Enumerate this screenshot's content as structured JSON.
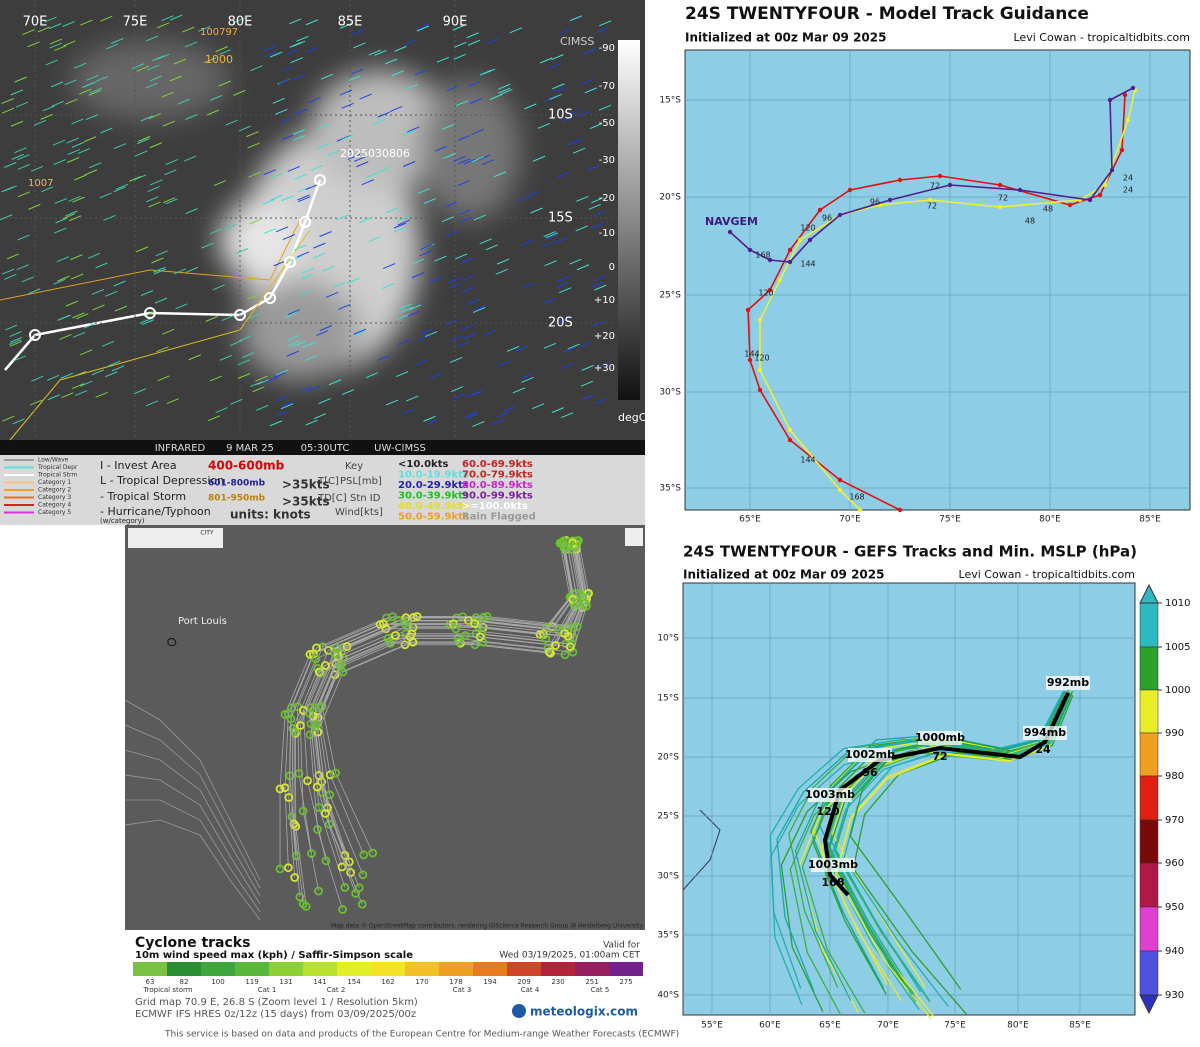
{
  "satellite": {
    "lon_labels": [
      "70E",
      "75E",
      "80E",
      "85E",
      "90E"
    ],
    "lat_labels": [
      "10S",
      "15S",
      "20S"
    ],
    "colorbar_labels": [
      "-90",
      "-70",
      "-50",
      "-30",
      "-20",
      "-10",
      "0",
      "+10",
      "+20",
      "+30"
    ],
    "colorbar_unit": "degC",
    "stamp": "2025030806",
    "pressures": [
      "1007",
      "1000",
      "100797"
    ],
    "footer": [
      "INFRARED",
      "9 MAR 25",
      "05:30UTC",
      "UW-CIMSS"
    ],
    "logo": "CIMSS"
  },
  "sat_legend": {
    "track_types": [
      "Low/Wave",
      "Tropical Depr",
      "Tropical Strm",
      "Category 1",
      "Category 2",
      "Category 3",
      "Category 4",
      "Category 5"
    ],
    "symbols": [
      "I - Invest Area",
      "L - Tropical Depression",
      "- Tropical Storm",
      "- Hurricane/Typhoon",
      "(w/category)"
    ],
    "layers": [
      "400-600mb",
      "601-800mb",
      ">35kts",
      "801-950mb",
      ">35kts",
      "units: knots"
    ],
    "key": [
      "Key",
      "T[C]",
      "PSL[mb]",
      "TD[C]",
      "Stn ID",
      "Wind[kts]"
    ],
    "speeds": [
      "<10.0kts",
      "10.0-19.9kts",
      "20.0-29.9kts",
      "30.0-39.9kts",
      "40.0-49.9kts",
      "50.0-59.9kts",
      "60.0-69.9kts",
      "70.0-79.9kts",
      "80.0-89.9kts",
      "90.0-99.9kts",
      ">=100.0kts",
      "Rain Flagged"
    ]
  },
  "model_track": {
    "title": "24S TWENTYFOUR - Model Track Guidance",
    "init": "Initialized at 00z Mar 09 2025",
    "credit": "Levi Cowan - tropicaltidbits.com",
    "lat_labels": [
      "15°S",
      "20°S",
      "25°S",
      "30°S",
      "35°S"
    ],
    "lon_labels": [
      "65°E",
      "70°E",
      "75°E",
      "80°E",
      "85°E"
    ],
    "model_label": "NAVGEM",
    "hour_labels": [
      "72",
      "72",
      "96",
      "96",
      "120",
      "168",
      "144",
      "120",
      "144",
      "120",
      "144",
      "168",
      "24",
      "24",
      "48",
      "48",
      "72"
    ]
  },
  "cyclone_tracks": {
    "place": "Port Louis",
    "attribution": "Map data © OpenStreetMap contributors, rendering GIScience Research Group @ Heidelberg University",
    "title": "Cyclone tracks",
    "subtitle": "10m wind speed max (kph) / Saffir-Simpson scale",
    "valid_label": "Valid for",
    "valid_time": "Wed 03/19/2025, 01:00am CET",
    "scale": [
      "63",
      "82",
      "100",
      "119",
      "131",
      "141",
      "154",
      "162",
      "170",
      "178",
      "194",
      "209",
      "230",
      "251",
      "275"
    ],
    "categories": [
      "Tropical storm",
      "Cat 1",
      "Cat 2",
      "Cat 3",
      "Cat 4",
      "Cat 5"
    ],
    "grid_info": "Grid map 70.9 E, 26.8 S (Zoom level 1 / Resolution 5km)",
    "model_info": "ECMWF IFS HRES 0z/12z (15 days) from 03/09/2025/00z",
    "brand": "meteologix.com",
    "footer": "This service is based on data and products of the European Centre for Medium-range Weather Forecasts (ECMWF)",
    "city_button": "CITY"
  },
  "gefs": {
    "title": "24S TWENTYFOUR - GEFS Tracks and Min. MSLP (hPa)",
    "init": "Initialized at 00z Mar 09 2025",
    "credit": "Levi Cowan - tropicaltidbits.com",
    "lat_labels": [
      "10°S",
      "15°S",
      "20°S",
      "25°S",
      "30°S",
      "35°S",
      "40°S"
    ],
    "lon_labels": [
      "55°E",
      "60°E",
      "65°E",
      "70°E",
      "75°E",
      "80°E",
      "85°E"
    ],
    "colorbar_ticks": [
      1010,
      1005,
      1000,
      990,
      980,
      970,
      960,
      950,
      940,
      930
    ],
    "pressure_labels": [
      "992mb",
      "994mb",
      "1000mb",
      "1002mb",
      "1003mb",
      "1003mb"
    ],
    "hour_labels": [
      "24",
      "72",
      "96",
      "120",
      "168"
    ]
  }
}
